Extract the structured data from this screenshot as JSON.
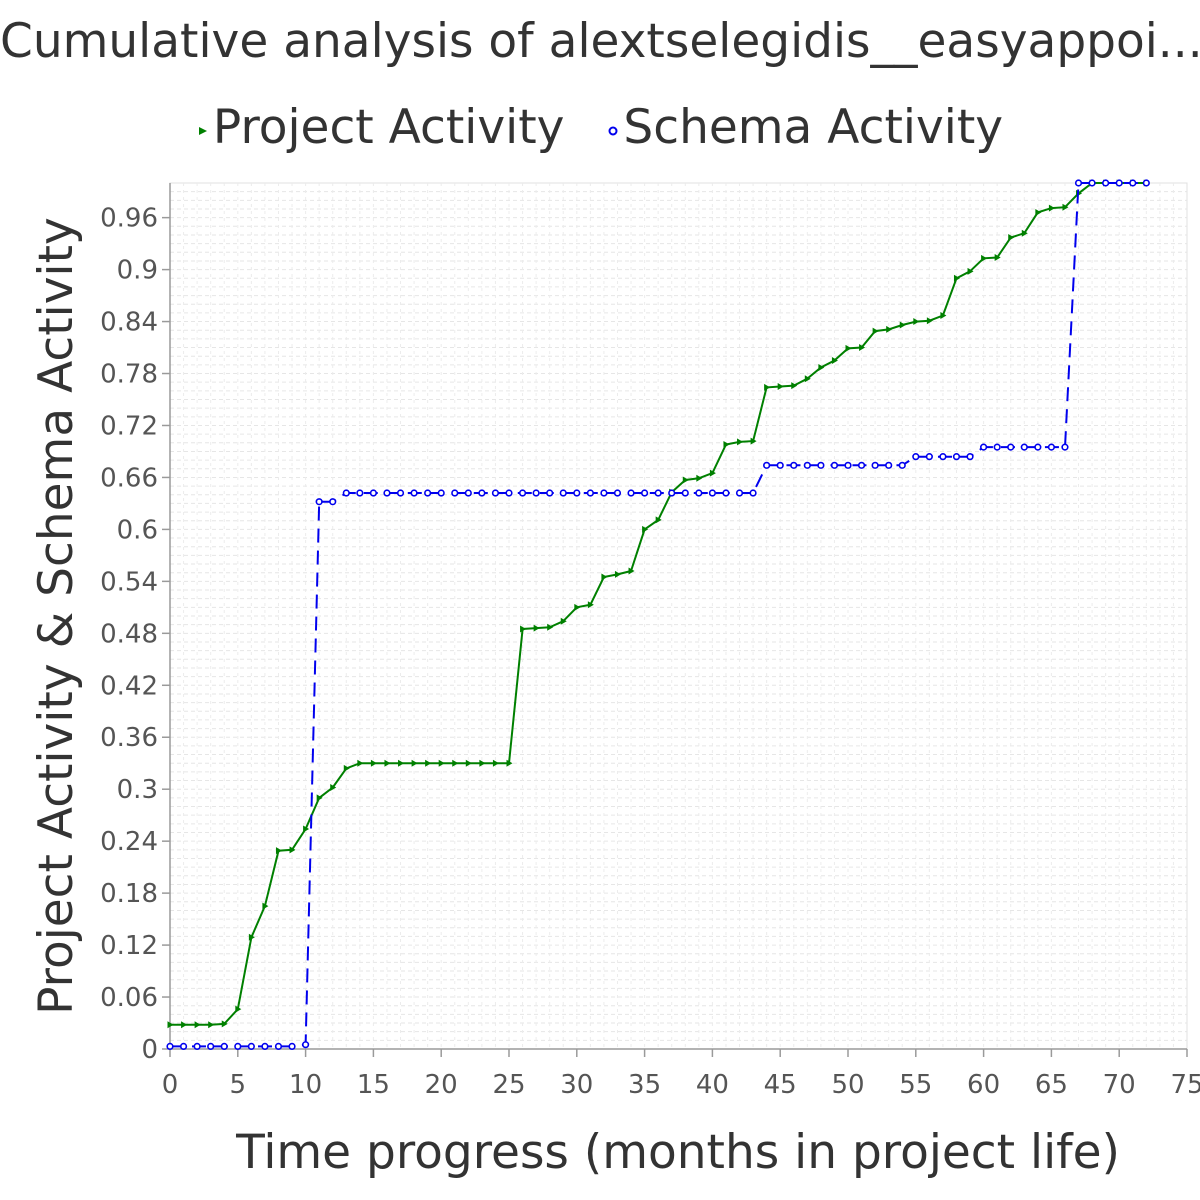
{
  "chart_data": {
    "type": "line",
    "title": "Cumulative analysis of alextselegidis__easyappoi...",
    "xlabel": "Time progress (months in project life)",
    "ylabel": "Project Activity & Schema Activity",
    "xlim": [
      0,
      75
    ],
    "ylim": [
      0,
      1.0
    ],
    "x_ticks": [
      "0",
      "5",
      "10",
      "15",
      "20",
      "25",
      "30",
      "35",
      "40",
      "45",
      "50",
      "55",
      "60",
      "65",
      "70",
      "75"
    ],
    "y_ticks": [
      "0",
      "0.06",
      "0.12",
      "0.18",
      "0.24",
      "0.3",
      "0.36",
      "0.42",
      "0.48",
      "0.54",
      "0.6",
      "0.66",
      "0.72",
      "0.78",
      "0.84",
      "0.9",
      "0.96"
    ],
    "grid": true,
    "legend_position": "top",
    "series": [
      {
        "name": "Project Activity",
        "color": "#008000",
        "marker": "triangle-right",
        "line_style": "solid",
        "points": [
          [
            0,
            0.028
          ],
          [
            1,
            0.028
          ],
          [
            2,
            0.028
          ],
          [
            3,
            0.028
          ],
          [
            4,
            0.029
          ],
          [
            5,
            0.046
          ],
          [
            6,
            0.129
          ],
          [
            7,
            0.165
          ],
          [
            8,
            0.229
          ],
          [
            9,
            0.23
          ],
          [
            10,
            0.254
          ],
          [
            11,
            0.29
          ],
          [
            12,
            0.302
          ],
          [
            13,
            0.324
          ],
          [
            14,
            0.33
          ],
          [
            15,
            0.33
          ],
          [
            16,
            0.33
          ],
          [
            17,
            0.33
          ],
          [
            18,
            0.33
          ],
          [
            19,
            0.33
          ],
          [
            20,
            0.33
          ],
          [
            21,
            0.33
          ],
          [
            22,
            0.33
          ],
          [
            23,
            0.33
          ],
          [
            24,
            0.33
          ],
          [
            25,
            0.33
          ],
          [
            26,
            0.485
          ],
          [
            27,
            0.486
          ],
          [
            28,
            0.487
          ],
          [
            29,
            0.494
          ],
          [
            30,
            0.51
          ],
          [
            31,
            0.513
          ],
          [
            32,
            0.545
          ],
          [
            33,
            0.548
          ],
          [
            34,
            0.552
          ],
          [
            35,
            0.6
          ],
          [
            36,
            0.611
          ],
          [
            37,
            0.643
          ],
          [
            38,
            0.657
          ],
          [
            39,
            0.659
          ],
          [
            40,
            0.665
          ],
          [
            41,
            0.698
          ],
          [
            42,
            0.701
          ],
          [
            43,
            0.702
          ],
          [
            44,
            0.764
          ],
          [
            45,
            0.765
          ],
          [
            46,
            0.766
          ],
          [
            47,
            0.774
          ],
          [
            48,
            0.787
          ],
          [
            49,
            0.795
          ],
          [
            50,
            0.809
          ],
          [
            51,
            0.81
          ],
          [
            52,
            0.829
          ],
          [
            53,
            0.831
          ],
          [
            54,
            0.836
          ],
          [
            55,
            0.84
          ],
          [
            56,
            0.841
          ],
          [
            57,
            0.847
          ],
          [
            58,
            0.89
          ],
          [
            59,
            0.898
          ],
          [
            60,
            0.913
          ],
          [
            61,
            0.914
          ],
          [
            62,
            0.937
          ],
          [
            63,
            0.942
          ],
          [
            64,
            0.966
          ],
          [
            65,
            0.971
          ],
          [
            66,
            0.972
          ],
          [
            67,
            0.988
          ],
          [
            68,
            1.0
          ],
          [
            69,
            1.0
          ],
          [
            70,
            1.0
          ],
          [
            71,
            1.0
          ],
          [
            72,
            1.0
          ]
        ]
      },
      {
        "name": "Schema Activity",
        "color": "#0000ee",
        "marker": "circle",
        "line_style": "dashed",
        "points": [
          [
            0,
            0.003
          ],
          [
            1,
            0.003
          ],
          [
            2,
            0.003
          ],
          [
            3,
            0.003
          ],
          [
            4,
            0.003
          ],
          [
            5,
            0.003
          ],
          [
            6,
            0.003
          ],
          [
            7,
            0.003
          ],
          [
            8,
            0.003
          ],
          [
            9,
            0.003
          ],
          [
            10,
            0.005
          ],
          [
            11,
            0.632
          ],
          [
            12,
            0.632
          ],
          [
            13,
            0.642
          ],
          [
            14,
            0.642
          ],
          [
            15,
            0.642
          ],
          [
            16,
            0.642
          ],
          [
            17,
            0.642
          ],
          [
            18,
            0.642
          ],
          [
            19,
            0.642
          ],
          [
            20,
            0.642
          ],
          [
            21,
            0.642
          ],
          [
            22,
            0.642
          ],
          [
            23,
            0.642
          ],
          [
            24,
            0.642
          ],
          [
            25,
            0.642
          ],
          [
            26,
            0.642
          ],
          [
            27,
            0.642
          ],
          [
            28,
            0.642
          ],
          [
            29,
            0.642
          ],
          [
            30,
            0.642
          ],
          [
            31,
            0.642
          ],
          [
            32,
            0.642
          ],
          [
            33,
            0.642
          ],
          [
            34,
            0.642
          ],
          [
            35,
            0.642
          ],
          [
            36,
            0.642
          ],
          [
            37,
            0.642
          ],
          [
            38,
            0.642
          ],
          [
            39,
            0.642
          ],
          [
            40,
            0.642
          ],
          [
            41,
            0.642
          ],
          [
            42,
            0.642
          ],
          [
            43,
            0.642
          ],
          [
            44,
            0.674
          ],
          [
            45,
            0.674
          ],
          [
            46,
            0.674
          ],
          [
            47,
            0.674
          ],
          [
            48,
            0.674
          ],
          [
            49,
            0.674
          ],
          [
            50,
            0.674
          ],
          [
            51,
            0.674
          ],
          [
            52,
            0.674
          ],
          [
            53,
            0.674
          ],
          [
            54,
            0.674
          ],
          [
            55,
            0.684
          ],
          [
            56,
            0.684
          ],
          [
            57,
            0.684
          ],
          [
            58,
            0.684
          ],
          [
            59,
            0.684
          ],
          [
            60,
            0.695
          ],
          [
            61,
            0.695
          ],
          [
            62,
            0.695
          ],
          [
            63,
            0.695
          ],
          [
            64,
            0.695
          ],
          [
            65,
            0.695
          ],
          [
            66,
            0.695
          ],
          [
            67,
            1.0
          ],
          [
            68,
            1.0
          ],
          [
            69,
            1.0
          ],
          [
            70,
            1.0
          ],
          [
            71,
            1.0
          ],
          [
            72,
            1.0
          ]
        ]
      }
    ]
  }
}
